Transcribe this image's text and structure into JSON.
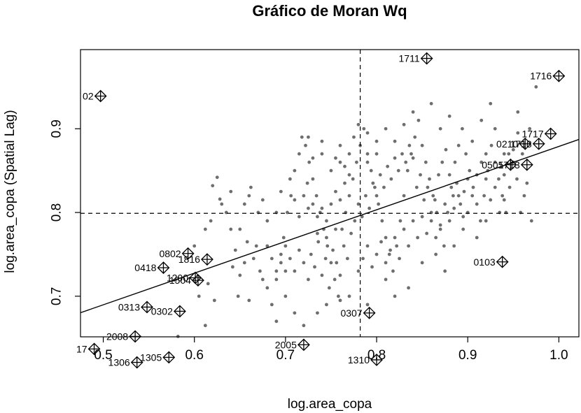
{
  "chart_data": {
    "type": "scatter",
    "title": "Gráfico de Moran Wq",
    "xlabel": "log.area_copa",
    "ylabel": "log.area_copa (Spatial Lag)",
    "xlim": [
      0.475,
      1.022
    ],
    "ylim": [
      0.6515,
      0.9945
    ],
    "x_ticks": [
      "0.5",
      "0.6",
      "0.7",
      "0.8",
      "0.9",
      "1.0"
    ],
    "y_ticks": [
      "0.7",
      "0.8",
      "0.9"
    ],
    "x_mean": 0.782,
    "y_mean": 0.799,
    "regression": {
      "x1": 0.475,
      "y1": 0.6803,
      "x2": 1.022,
      "y2": 0.8872
    },
    "colors": {
      "points": "#6e6e6e",
      "axes": "#000000"
    },
    "influential": [
      {
        "label": "1711",
        "x": 0.855,
        "y": 0.984
      },
      {
        "label": "1716",
        "x": 1.0,
        "y": 0.963
      },
      {
        "label": "02",
        "x": 0.497,
        "y": 0.939
      },
      {
        "label": "1717",
        "x": 0.991,
        "y": 0.894
      },
      {
        "label": "0210",
        "x": 0.963,
        "y": 0.882
      },
      {
        "label": "1718",
        "x": 0.978,
        "y": 0.882
      },
      {
        "label": "0505",
        "x": 0.947,
        "y": 0.857
      },
      {
        "label": "1713",
        "x": 0.965,
        "y": 0.857
      },
      {
        "label": "0802",
        "x": 0.593,
        "y": 0.751
      },
      {
        "label": "1816",
        "x": 0.614,
        "y": 0.744
      },
      {
        "label": "0418",
        "x": 0.566,
        "y": 0.734
      },
      {
        "label": "1200",
        "x": 0.601,
        "y": 0.722
      },
      {
        "label": "1504",
        "x": 0.604,
        "y": 0.719
      },
      {
        "label": "0103",
        "x": 0.938,
        "y": 0.741
      },
      {
        "label": "0313",
        "x": 0.548,
        "y": 0.687
      },
      {
        "label": "0302",
        "x": 0.584,
        "y": 0.682
      },
      {
        "label": "0307",
        "x": 0.792,
        "y": 0.68
      },
      {
        "label": "2008",
        "x": 0.535,
        "y": 0.652
      },
      {
        "label": "2005",
        "x": 0.72,
        "y": 0.642
      },
      {
        "label": "17",
        "x": 0.49,
        "y": 0.637
      },
      {
        "label": "1305",
        "x": 0.572,
        "y": 0.627
      },
      {
        "label": "1306",
        "x": 0.537,
        "y": 0.621
      },
      {
        "label": "1310",
        "x": 0.8,
        "y": 0.624
      }
    ],
    "points": [
      [
        0.625,
        0.842
      ],
      [
        0.62,
        0.832
      ],
      [
        0.628,
        0.816
      ],
      [
        0.635,
        0.8
      ],
      [
        0.618,
        0.79
      ],
      [
        0.612,
        0.78
      ],
      [
        0.6,
        0.76
      ],
      [
        0.615,
        0.715
      ],
      [
        0.605,
        0.7
      ],
      [
        0.622,
        0.695
      ],
      [
        0.582,
        0.652
      ],
      [
        0.612,
        0.665
      ],
      [
        0.648,
        0.7
      ],
      [
        0.66,
        0.695
      ],
      [
        0.65,
        0.725
      ],
      [
        0.655,
        0.74
      ],
      [
        0.64,
        0.78
      ],
      [
        0.655,
        0.81
      ],
      [
        0.662,
        0.83
      ],
      [
        0.668,
        0.76
      ],
      [
        0.672,
        0.73
      ],
      [
        0.68,
        0.71
      ],
      [
        0.685,
        0.69
      ],
      [
        0.69,
        0.72
      ],
      [
        0.695,
        0.74
      ],
      [
        0.698,
        0.77
      ],
      [
        0.702,
        0.8
      ],
      [
        0.706,
        0.82
      ],
      [
        0.71,
        0.85
      ],
      [
        0.715,
        0.87
      ],
      [
        0.718,
        0.89
      ],
      [
        0.722,
        0.88
      ],
      [
        0.726,
        0.86
      ],
      [
        0.73,
        0.84
      ],
      [
        0.734,
        0.82
      ],
      [
        0.738,
        0.8
      ],
      [
        0.742,
        0.78
      ],
      [
        0.746,
        0.76
      ],
      [
        0.75,
        0.74
      ],
      [
        0.754,
        0.72
      ],
      [
        0.758,
        0.7
      ],
      [
        0.762,
        0.78
      ],
      [
        0.766,
        0.8
      ],
      [
        0.77,
        0.82
      ],
      [
        0.774,
        0.84
      ],
      [
        0.778,
        0.86
      ],
      [
        0.782,
        0.88
      ],
      [
        0.786,
        0.9
      ],
      [
        0.79,
        0.87
      ],
      [
        0.794,
        0.85
      ],
      [
        0.798,
        0.83
      ],
      [
        0.802,
        0.81
      ],
      [
        0.806,
        0.79
      ],
      [
        0.81,
        0.77
      ],
      [
        0.814,
        0.75
      ],
      [
        0.818,
        0.73
      ],
      [
        0.822,
        0.76
      ],
      [
        0.826,
        0.79
      ],
      [
        0.83,
        0.82
      ],
      [
        0.834,
        0.85
      ],
      [
        0.838,
        0.87
      ],
      [
        0.842,
        0.89
      ],
      [
        0.846,
        0.91
      ],
      [
        0.85,
        0.88
      ],
      [
        0.854,
        0.86
      ],
      [
        0.858,
        0.84
      ],
      [
        0.862,
        0.82
      ],
      [
        0.866,
        0.8
      ],
      [
        0.87,
        0.78
      ],
      [
        0.874,
        0.76
      ],
      [
        0.878,
        0.8
      ],
      [
        0.882,
        0.83
      ],
      [
        0.886,
        0.86
      ],
      [
        0.89,
        0.88
      ],
      [
        0.894,
        0.9
      ],
      [
        0.898,
        0.87
      ],
      [
        0.902,
        0.85
      ],
      [
        0.906,
        0.83
      ],
      [
        0.91,
        0.81
      ],
      [
        0.914,
        0.79
      ],
      [
        0.918,
        0.82
      ],
      [
        0.922,
        0.85
      ],
      [
        0.926,
        0.88
      ],
      [
        0.93,
        0.86
      ],
      [
        0.934,
        0.84
      ],
      [
        0.938,
        0.82
      ],
      [
        0.942,
        0.8
      ],
      [
        0.946,
        0.83
      ],
      [
        0.95,
        0.86
      ],
      [
        0.954,
        0.84
      ],
      [
        0.958,
        0.8
      ],
      [
        0.962,
        0.82
      ],
      [
        0.97,
        0.79
      ],
      [
        0.975,
        0.95
      ],
      [
        0.968,
        0.9
      ],
      [
        0.955,
        0.92
      ],
      [
        0.94,
        0.87
      ],
      [
        0.925,
        0.93
      ],
      [
        0.915,
        0.91
      ],
      [
        0.905,
        0.885
      ],
      [
        0.7,
        0.76
      ],
      [
        0.705,
        0.745
      ],
      [
        0.71,
        0.73
      ],
      [
        0.715,
        0.755
      ],
      [
        0.72,
        0.74
      ],
      [
        0.725,
        0.72
      ],
      [
        0.728,
        0.75
      ],
      [
        0.732,
        0.735
      ],
      [
        0.736,
        0.765
      ],
      [
        0.74,
        0.725
      ],
      [
        0.744,
        0.745
      ],
      [
        0.748,
        0.71
      ],
      [
        0.752,
        0.755
      ],
      [
        0.756,
        0.74
      ],
      [
        0.76,
        0.725
      ],
      [
        0.764,
        0.76
      ],
      [
        0.768,
        0.745
      ],
      [
        0.772,
        0.775
      ],
      [
        0.776,
        0.79
      ],
      [
        0.78,
        0.81
      ],
      [
        0.784,
        0.795
      ],
      [
        0.788,
        0.82
      ],
      [
        0.792,
        0.805
      ],
      [
        0.796,
        0.835
      ],
      [
        0.8,
        0.82
      ],
      [
        0.804,
        0.845
      ],
      [
        0.808,
        0.83
      ],
      [
        0.812,
        0.855
      ],
      [
        0.816,
        0.84
      ],
      [
        0.82,
        0.865
      ],
      [
        0.824,
        0.85
      ],
      [
        0.828,
        0.87
      ],
      [
        0.832,
        0.86
      ],
      [
        0.836,
        0.88
      ],
      [
        0.84,
        0.865
      ],
      [
        0.844,
        0.83
      ],
      [
        0.848,
        0.845
      ],
      [
        0.852,
        0.815
      ],
      [
        0.856,
        0.83
      ],
      [
        0.86,
        0.8
      ],
      [
        0.864,
        0.815
      ],
      [
        0.868,
        0.845
      ],
      [
        0.872,
        0.86
      ],
      [
        0.876,
        0.875
      ],
      [
        0.88,
        0.845
      ],
      [
        0.884,
        0.82
      ],
      [
        0.888,
        0.835
      ],
      [
        0.892,
        0.81
      ],
      [
        0.896,
        0.825
      ],
      [
        0.9,
        0.8
      ],
      [
        0.72,
        0.82
      ],
      [
        0.724,
        0.835
      ],
      [
        0.73,
        0.81
      ],
      [
        0.735,
        0.795
      ],
      [
        0.74,
        0.805
      ],
      [
        0.745,
        0.79
      ],
      [
        0.75,
        0.81
      ],
      [
        0.755,
        0.825
      ],
      [
        0.76,
        0.815
      ],
      [
        0.765,
        0.835
      ],
      [
        0.68,
        0.76
      ],
      [
        0.685,
        0.745
      ],
      [
        0.69,
        0.73
      ],
      [
        0.695,
        0.75
      ],
      [
        0.7,
        0.73
      ],
      [
        0.675,
        0.72
      ],
      [
        0.665,
        0.745
      ],
      [
        0.658,
        0.765
      ],
      [
        0.645,
        0.755
      ],
      [
        0.642,
        0.735
      ],
      [
        0.75,
        0.85
      ],
      [
        0.755,
        0.865
      ],
      [
        0.76,
        0.88
      ],
      [
        0.765,
        0.855
      ],
      [
        0.77,
        0.87
      ],
      [
        0.775,
        0.89
      ],
      [
        0.78,
        0.905
      ],
      [
        0.79,
        0.895
      ],
      [
        0.8,
        0.885
      ],
      [
        0.81,
        0.9
      ],
      [
        0.78,
        0.73
      ],
      [
        0.785,
        0.745
      ],
      [
        0.79,
        0.76
      ],
      [
        0.795,
        0.735
      ],
      [
        0.8,
        0.75
      ],
      [
        0.805,
        0.765
      ],
      [
        0.81,
        0.74
      ],
      [
        0.815,
        0.755
      ],
      [
        0.82,
        0.77
      ],
      [
        0.825,
        0.745
      ],
      [
        0.83,
        0.78
      ],
      [
        0.835,
        0.76
      ],
      [
        0.84,
        0.79
      ],
      [
        0.845,
        0.77
      ],
      [
        0.85,
        0.795
      ],
      [
        0.855,
        0.775
      ],
      [
        0.86,
        0.79
      ],
      [
        0.865,
        0.77
      ],
      [
        0.87,
        0.785
      ],
      [
        0.875,
        0.81
      ],
      [
        0.88,
        0.79
      ],
      [
        0.885,
        0.805
      ],
      [
        0.89,
        0.82
      ],
      [
        0.895,
        0.795
      ],
      [
        0.9,
        0.84
      ],
      [
        0.905,
        0.82
      ],
      [
        0.91,
        0.845
      ],
      [
        0.915,
        0.86
      ],
      [
        0.92,
        0.84
      ],
      [
        0.925,
        0.815
      ],
      [
        0.93,
        0.83
      ],
      [
        0.935,
        0.8
      ],
      [
        0.94,
        0.845
      ],
      [
        0.945,
        0.87
      ],
      [
        0.95,
        0.875
      ],
      [
        0.955,
        0.895
      ],
      [
        0.96,
        0.87
      ],
      [
        0.965,
        0.835
      ],
      [
        0.93,
        0.9
      ],
      [
        0.92,
        0.87
      ],
      [
        0.72,
        0.665
      ],
      [
        0.735,
        0.68
      ],
      [
        0.76,
        0.695
      ],
      [
        0.71,
        0.68
      ],
      [
        0.69,
        0.67
      ],
      [
        0.7,
        0.7
      ],
      [
        0.745,
        0.69
      ],
      [
        0.77,
        0.7
      ],
      [
        0.79,
        0.69
      ],
      [
        0.81,
        0.72
      ],
      [
        0.82,
        0.7
      ],
      [
        0.835,
        0.71
      ],
      [
        0.85,
        0.74
      ],
      [
        0.865,
        0.75
      ],
      [
        0.875,
        0.73
      ],
      [
        0.885,
        0.76
      ],
      [
        0.895,
        0.78
      ],
      [
        0.91,
        0.77
      ],
      [
        0.92,
        0.79
      ],
      [
        0.94,
        0.815
      ],
      [
        0.83,
        0.905
      ],
      [
        0.84,
        0.92
      ],
      [
        0.87,
        0.9
      ],
      [
        0.88,
        0.915
      ],
      [
        0.86,
        0.93
      ],
      [
        0.82,
        0.885
      ],
      [
        0.8,
        0.87
      ],
      [
        0.79,
        0.86
      ],
      [
        0.77,
        0.845
      ],
      [
        0.76,
        0.86
      ],
      [
        0.74,
        0.87
      ],
      [
        0.73,
        0.865
      ],
      [
        0.725,
        0.89
      ],
      [
        0.74,
        0.885
      ],
      [
        0.705,
        0.84
      ],
      [
        0.71,
        0.815
      ],
      [
        0.69,
        0.8
      ],
      [
        0.68,
        0.79
      ],
      [
        0.67,
        0.8
      ],
      [
        0.65,
        0.78
      ],
      [
        0.63,
        0.81
      ],
      [
        0.64,
        0.825
      ],
      [
        0.66,
        0.82
      ],
      [
        0.675,
        0.815
      ],
      [
        0.695,
        0.825
      ],
      [
        0.715,
        0.795
      ],
      [
        0.725,
        0.805
      ],
      [
        0.735,
        0.775
      ],
      [
        0.745,
        0.77
      ],
      [
        0.755,
        0.78
      ]
    ]
  }
}
